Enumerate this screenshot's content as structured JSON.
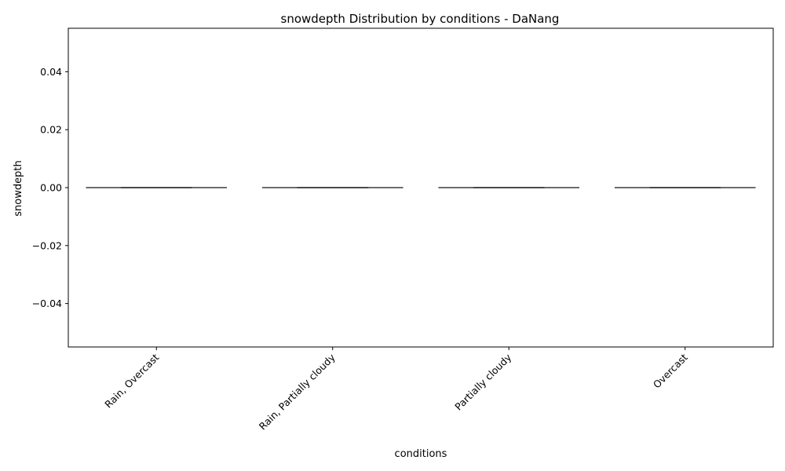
{
  "chart_data": {
    "type": "box",
    "title": "snowdepth Distribution by conditions - DaNang",
    "xlabel": "conditions",
    "ylabel": "snowdepth",
    "categories": [
      "Rain, Overcast",
      "Rain, Partially cloudy",
      "Partially cloudy",
      "Overcast"
    ],
    "boxes": [
      {
        "min": 0,
        "q1": 0,
        "median": 0,
        "q3": 0,
        "max": 0
      },
      {
        "min": 0,
        "q1": 0,
        "median": 0,
        "q3": 0,
        "max": 0
      },
      {
        "min": 0,
        "q1": 0,
        "median": 0,
        "q3": 0,
        "max": 0
      },
      {
        "min": 0,
        "q1": 0,
        "median": 0,
        "q3": 0,
        "max": 0
      }
    ],
    "ylim": [
      -0.055,
      0.055
    ],
    "yticks": [
      -0.04,
      -0.02,
      0.0,
      0.02,
      0.04
    ],
    "ytick_labels": [
      "−0.04",
      "−0.02",
      "0.00",
      "0.02",
      "0.04"
    ],
    "grid": false,
    "colors": {
      "box_line": "#3d3d3d",
      "spine": "#000000"
    }
  }
}
